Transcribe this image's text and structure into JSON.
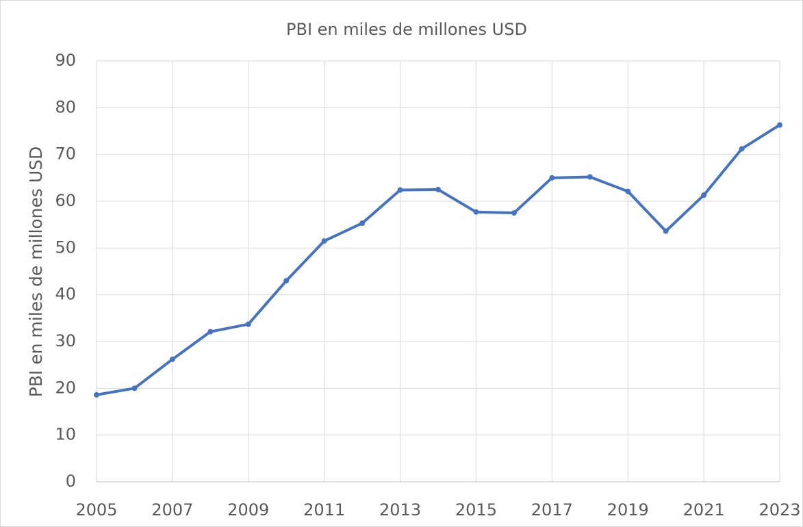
{
  "chart_data": {
    "type": "line",
    "title": "PBI en miles de millones USD",
    "y_label": "PBI en miles de millones USD",
    "x": [
      2005,
      2006,
      2007,
      2008,
      2009,
      2010,
      2011,
      2012,
      2013,
      2014,
      2015,
      2016,
      2017,
      2018,
      2019,
      2020,
      2021,
      2022,
      2023
    ],
    "values": [
      18.6,
      20.0,
      26.2,
      32.1,
      33.7,
      43.0,
      51.5,
      55.3,
      62.4,
      62.5,
      57.7,
      57.5,
      65.0,
      65.2,
      62.1,
      53.6,
      61.3,
      71.2,
      76.3
    ],
    "color": "#4472c4",
    "xlim": [
      2005,
      2023
    ],
    "xticks": [
      2005,
      2007,
      2009,
      2011,
      2013,
      2015,
      2017,
      2019,
      2021,
      2023
    ],
    "ylim": [
      0,
      90
    ],
    "yticks": [
      0,
      10,
      20,
      30,
      40,
      50,
      60,
      70,
      80,
      90
    ],
    "grid": true
  }
}
